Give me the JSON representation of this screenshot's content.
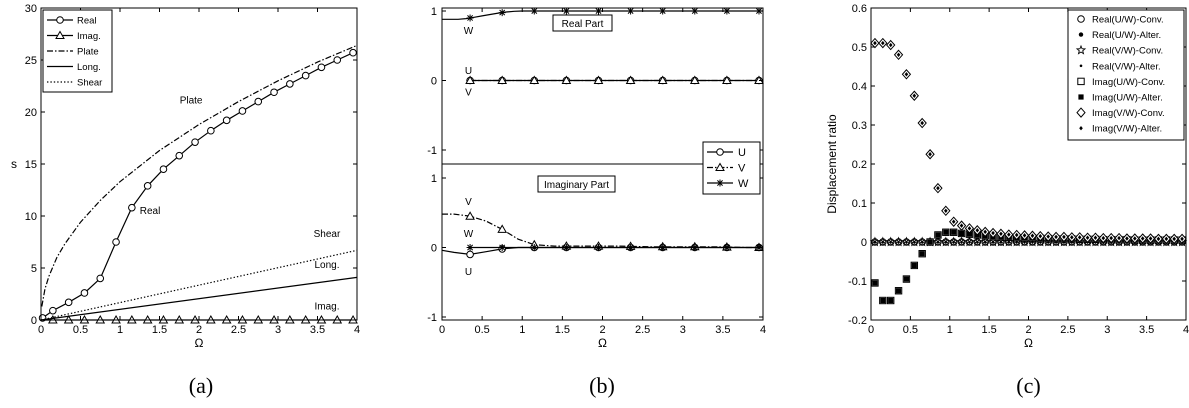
{
  "chart_data": [
    {
      "id": "a",
      "type": "line",
      "caption": "(a)",
      "xlabel": "Ω",
      "ylabel": "s",
      "xlim": [
        0,
        4
      ],
      "ylim": [
        0,
        30
      ],
      "xticks": [
        0,
        0.5,
        1,
        1.5,
        2,
        2.5,
        3,
        3.5,
        4
      ],
      "yticks": [
        0,
        5,
        10,
        15,
        20,
        25,
        30
      ],
      "grid": false,
      "legend_position": "top-left",
      "series": [
        {
          "name": "Real",
          "style": "solid",
          "marker": "circle",
          "x": [
            0.02,
            0.15,
            0.35,
            0.55,
            0.75,
            0.95,
            1.15,
            1.35,
            1.55,
            1.75,
            1.95,
            2.15,
            2.35,
            2.55,
            2.75,
            2.95,
            3.15,
            3.35,
            3.55,
            3.75,
            3.95
          ],
          "y": [
            0.2,
            0.9,
            1.7,
            2.6,
            4.0,
            7.5,
            10.8,
            12.9,
            14.5,
            15.8,
            17.1,
            18.2,
            19.2,
            20.1,
            21.0,
            21.9,
            22.7,
            23.5,
            24.3,
            25.0,
            25.7
          ]
        },
        {
          "name": "Imag.",
          "style": "solid",
          "marker": "triangle",
          "x": [
            0.15,
            0.35,
            0.55,
            0.75,
            0.95,
            1.15,
            1.35,
            1.55,
            1.75,
            1.95,
            2.15,
            2.35,
            2.55,
            2.75,
            2.95,
            3.15,
            3.35,
            3.55,
            3.75,
            3.95
          ],
          "y": [
            0,
            0,
            0,
            0,
            0,
            0,
            0,
            0,
            0,
            0,
            0,
            0,
            0,
            0,
            0,
            0,
            0,
            0,
            0,
            0
          ]
        },
        {
          "name": "Plate",
          "style": "dashdot",
          "marker": "none",
          "x": [
            0.01,
            0.05,
            0.1,
            0.2,
            0.3,
            0.5,
            0.75,
            1.0,
            1.5,
            2.0,
            2.5,
            3.0,
            3.5,
            4.0
          ],
          "y": [
            1.3,
            3.0,
            4.2,
            6.0,
            7.3,
            9.4,
            11.5,
            13.3,
            16.3,
            18.8,
            21.0,
            23.0,
            24.8,
            26.4
          ]
        },
        {
          "name": "Long.",
          "style": "solid",
          "marker": "none",
          "x": [
            0,
            4
          ],
          "y": [
            0,
            4.1
          ]
        },
        {
          "name": "Shear",
          "style": "dotted",
          "marker": "none",
          "x": [
            0,
            4
          ],
          "y": [
            0,
            6.7
          ]
        }
      ],
      "annotations": [
        {
          "text": "Plate",
          "x": 1.9,
          "y": 20.8
        },
        {
          "text": "Real",
          "x": 1.38,
          "y": 10.2
        },
        {
          "text": "Shear",
          "x": 3.62,
          "y": 8.0
        },
        {
          "text": "Long.",
          "x": 3.62,
          "y": 5.0
        },
        {
          "text": "Imag.",
          "x": 3.62,
          "y": 1.0
        }
      ]
    },
    {
      "id": "b",
      "type": "line",
      "caption": "(b)",
      "xlabel": "Ω",
      "xlim": [
        0,
        4
      ],
      "xticks": [
        0,
        0.5,
        1,
        1.5,
        2,
        2.5,
        3,
        3.5,
        4
      ],
      "tick_labels_y": [
        "1",
        "0",
        "-1",
        "1",
        "0",
        "-1"
      ],
      "legend_position": "center-right",
      "legend": [
        "U",
        "V",
        "W"
      ],
      "subplots": [
        {
          "label": "Real Part",
          "ylim": [
            -1,
            1
          ],
          "yticks": [
            -1,
            0,
            1
          ],
          "series": [
            {
              "name": "U",
              "marker": "circle",
              "style": "solid",
              "x": [
                0.35,
                0.75,
                1.15,
                1.55,
                1.95,
                2.35,
                2.75,
                3.15,
                3.55,
                3.95
              ],
              "y": [
                0,
                0,
                0,
                0,
                0,
                0,
                0,
                0,
                0,
                0
              ]
            },
            {
              "name": "V",
              "marker": "triangle",
              "style": "dashdot",
              "x": [
                0.35,
                0.75,
                1.15,
                1.55,
                1.95,
                2.35,
                2.75,
                3.15,
                3.55,
                3.95
              ],
              "y": [
                0,
                0,
                0,
                0,
                0,
                0,
                0,
                0,
                0,
                0
              ]
            },
            {
              "name": "W",
              "marker": "star",
              "style": "solid",
              "x": [
                0.0,
                0.1,
                0.2,
                0.3,
                0.4,
                0.5,
                0.6,
                0.7,
                0.8,
                0.9,
                1.0,
                1.2,
                1.4,
                1.6,
                1.8,
                2.0,
                2.4,
                2.8,
                3.2,
                3.6,
                4.0
              ],
              "y": [
                0.88,
                0.88,
                0.88,
                0.89,
                0.91,
                0.93,
                0.95,
                0.97,
                0.985,
                0.995,
                1.0,
                1.0,
                1.0,
                1.0,
                1.0,
                1.0,
                1.0,
                1.0,
                1.0,
                1.0,
                1.0
              ],
              "marker_x": [
                0.35,
                0.75,
                1.15,
                1.55,
                1.95,
                2.35,
                2.75,
                3.15,
                3.55,
                3.95
              ]
            }
          ],
          "annotations": [
            {
              "text": "W",
              "x": 0.33,
              "y": 0.73
            },
            {
              "text": "U",
              "x": 0.33,
              "y": 0.15
            },
            {
              "text": "V",
              "x": 0.33,
              "y": -0.16
            }
          ]
        },
        {
          "label": "Imaginary Part",
          "ylim": [
            -1,
            1
          ],
          "yticks": [
            -1,
            0,
            1
          ],
          "series": [
            {
              "name": "U",
              "marker": "circle",
              "style": "solid",
              "x": [
                0.0,
                0.15,
                0.35,
                0.55,
                0.75,
                0.95,
                1.2,
                1.6,
                2.0,
                2.4,
                2.8,
                3.2,
                3.6,
                4.0
              ],
              "y": [
                -0.04,
                -0.07,
                -0.1,
                -0.06,
                -0.02,
                0.0,
                0.0,
                0.0,
                0.0,
                0.0,
                0.0,
                0.0,
                0.0,
                0.0
              ],
              "marker_x": [
                0.35,
                0.75,
                1.15,
                1.55,
                1.95,
                2.35,
                2.75,
                3.15,
                3.55,
                3.95
              ]
            },
            {
              "name": "V",
              "marker": "triangle",
              "style": "dashdot",
              "x": [
                0.0,
                0.15,
                0.35,
                0.55,
                0.75,
                0.95,
                1.15,
                1.4,
                1.8,
                2.2,
                2.6,
                3.0,
                3.4,
                3.8,
                4.0
              ],
              "y": [
                0.48,
                0.48,
                0.45,
                0.38,
                0.26,
                0.12,
                0.04,
                0.02,
                0.02,
                0.02,
                0.01,
                0.01,
                0.01,
                0.0,
                0.0
              ],
              "marker_x": [
                0.35,
                0.75,
                1.15,
                1.55,
                1.95,
                2.35,
                2.75,
                3.15,
                3.55,
                3.95
              ]
            },
            {
              "name": "W",
              "marker": "star",
              "style": "solid",
              "x": [
                0.35,
                0.75,
                1.15,
                1.55,
                1.95,
                2.35,
                2.75,
                3.15,
                3.55,
                3.95
              ],
              "y": [
                0,
                0,
                0,
                0,
                0,
                0,
                0,
                0,
                0,
                0
              ]
            }
          ],
          "annotations": [
            {
              "text": "V",
              "x": 0.33,
              "y": 0.67
            },
            {
              "text": "W",
              "x": 0.33,
              "y": 0.21
            },
            {
              "text": "U",
              "x": 0.33,
              "y": -0.34
            }
          ]
        }
      ]
    },
    {
      "id": "c",
      "type": "scatter",
      "caption": "(c)",
      "xlabel": "Ω",
      "ylabel": "Displacement ratio",
      "xlim": [
        0,
        4
      ],
      "ylim": [
        -0.2,
        0.6
      ],
      "xticks": [
        0,
        0.5,
        1,
        1.5,
        2,
        2.5,
        3,
        3.5,
        4
      ],
      "yticks": [
        -0.2,
        -0.1,
        0,
        0.1,
        0.2,
        0.3,
        0.4,
        0.5,
        0.6
      ],
      "grid": false,
      "legend_position": "top-right",
      "series": [
        {
          "name": "Real(U/W)-Conv.",
          "marker": "circle-open",
          "x_start": 0.05,
          "x_step": 0.1,
          "count": 40,
          "y": "zero"
        },
        {
          "name": "Real(U/W)-Alter.",
          "marker": "dot",
          "x_start": 0.05,
          "x_step": 0.1,
          "count": 40,
          "y": "zero"
        },
        {
          "name": "Real(V/W)-Conv.",
          "marker": "star-open",
          "x_start": 0.05,
          "x_step": 0.1,
          "count": 40,
          "y": "zero"
        },
        {
          "name": "Real(V/W)-Alter.",
          "marker": "small-dot",
          "x_start": 0.05,
          "x_step": 0.1,
          "count": 40,
          "y": "zero"
        },
        {
          "name": "Imag(U/W)-Conv.",
          "marker": "square-open",
          "x": [
            0.05,
            0.15,
            0.25,
            0.35,
            0.45,
            0.55,
            0.65,
            0.75,
            0.85,
            0.95,
            1.05,
            1.15,
            1.25,
            1.35,
            1.45,
            1.55,
            1.65,
            1.75,
            1.85,
            1.95,
            2.05,
            2.15,
            2.25,
            2.35,
            2.45,
            2.55,
            2.65,
            2.75,
            2.85,
            2.95,
            3.05,
            3.15,
            3.25,
            3.35,
            3.45,
            3.55,
            3.65,
            3.75,
            3.85,
            3.95
          ],
          "y": [
            -0.105,
            -0.15,
            -0.15,
            -0.125,
            -0.095,
            -0.06,
            -0.03,
            0.0,
            0.018,
            0.025,
            0.025,
            0.022,
            0.02,
            0.018,
            0.016,
            0.014,
            0.013,
            0.012,
            0.011,
            0.01,
            0.01,
            0.009,
            0.009,
            0.008,
            0.008,
            0.008,
            0.007,
            0.007,
            0.007,
            0.006,
            0.006,
            0.006,
            0.006,
            0.005,
            0.005,
            0.005,
            0.005,
            0.005,
            0.005,
            0.005
          ]
        },
        {
          "name": "Imag(U/W)-Alter.",
          "marker": "square-filled",
          "x": [
            0.05,
            0.15,
            0.25,
            0.35,
            0.45,
            0.55,
            0.65,
            0.75,
            0.85,
            0.95,
            1.05,
            1.15,
            1.25,
            1.35,
            1.45,
            1.55,
            1.65,
            1.75,
            1.85,
            1.95,
            2.05,
            2.15,
            2.25,
            2.35,
            2.45,
            2.55,
            2.65,
            2.75,
            2.85,
            2.95,
            3.05,
            3.15,
            3.25,
            3.35,
            3.45,
            3.55,
            3.65,
            3.75,
            3.85,
            3.95
          ],
          "y": [
            -0.105,
            -0.15,
            -0.15,
            -0.125,
            -0.095,
            -0.06,
            -0.03,
            0.0,
            0.018,
            0.025,
            0.025,
            0.022,
            0.02,
            0.018,
            0.016,
            0.014,
            0.013,
            0.012,
            0.011,
            0.01,
            0.01,
            0.009,
            0.009,
            0.008,
            0.008,
            0.008,
            0.007,
            0.007,
            0.007,
            0.006,
            0.006,
            0.006,
            0.006,
            0.005,
            0.005,
            0.005,
            0.005,
            0.005,
            0.005,
            0.005
          ]
        },
        {
          "name": "Imag(V/W)-Conv.",
          "marker": "diamond-open",
          "x": [
            0.05,
            0.15,
            0.25,
            0.35,
            0.45,
            0.55,
            0.65,
            0.75,
            0.85,
            0.95,
            1.05,
            1.15,
            1.25,
            1.35,
            1.45,
            1.55,
            1.65,
            1.75,
            1.85,
            1.95,
            2.05,
            2.15,
            2.25,
            2.35,
            2.45,
            2.55,
            2.65,
            2.75,
            2.85,
            2.95,
            3.05,
            3.15,
            3.25,
            3.35,
            3.45,
            3.55,
            3.65,
            3.75,
            3.85,
            3.95
          ],
          "y": [
            0.51,
            0.51,
            0.505,
            0.48,
            0.43,
            0.375,
            0.305,
            0.225,
            0.138,
            0.08,
            0.052,
            0.042,
            0.035,
            0.03,
            0.026,
            0.023,
            0.021,
            0.019,
            0.018,
            0.017,
            0.016,
            0.015,
            0.014,
            0.013,
            0.013,
            0.012,
            0.012,
            0.011,
            0.011,
            0.01,
            0.01,
            0.01,
            0.009,
            0.009,
            0.009,
            0.009,
            0.008,
            0.008,
            0.008,
            0.008
          ]
        },
        {
          "name": "Imag(V/W)-Alter.",
          "marker": "diamond-dot",
          "x": [
            0.05,
            0.15,
            0.25,
            0.35,
            0.45,
            0.55,
            0.65,
            0.75,
            0.85,
            0.95,
            1.05,
            1.15,
            1.25,
            1.35,
            1.45,
            1.55,
            1.65,
            1.75,
            1.85,
            1.95,
            2.05,
            2.15,
            2.25,
            2.35,
            2.45,
            2.55,
            2.65,
            2.75,
            2.85,
            2.95,
            3.05,
            3.15,
            3.25,
            3.35,
            3.45,
            3.55,
            3.65,
            3.75,
            3.85,
            3.95
          ],
          "y": [
            0.51,
            0.51,
            0.505,
            0.48,
            0.43,
            0.375,
            0.305,
            0.225,
            0.138,
            0.08,
            0.052,
            0.042,
            0.035,
            0.03,
            0.026,
            0.023,
            0.021,
            0.019,
            0.018,
            0.017,
            0.016,
            0.015,
            0.014,
            0.013,
            0.013,
            0.012,
            0.012,
            0.011,
            0.011,
            0.01,
            0.01,
            0.01,
            0.009,
            0.009,
            0.009,
            0.009,
            0.008,
            0.008,
            0.008,
            0.008
          ]
        }
      ]
    }
  ]
}
